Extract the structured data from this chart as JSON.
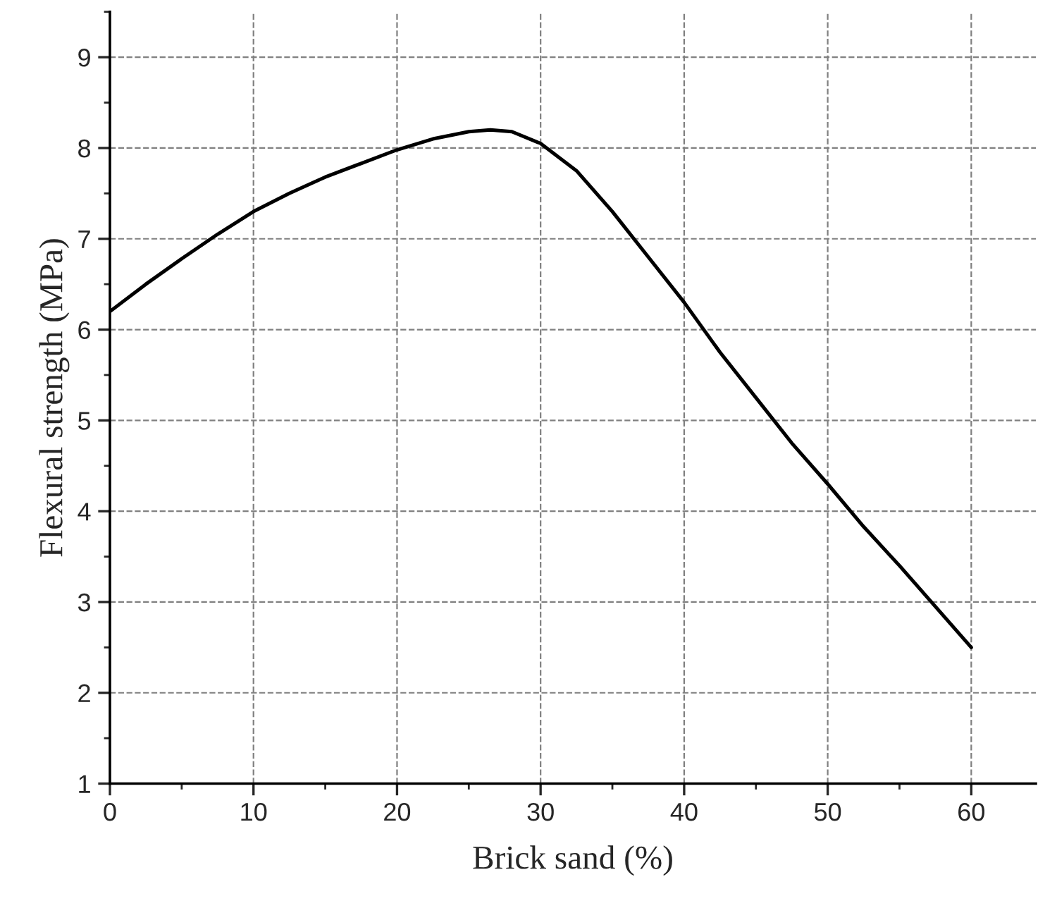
{
  "chart_data": {
    "type": "line",
    "xlabel": "Brick sand (%)",
    "ylabel": "Flexural strength (MPa)",
    "x": [
      0,
      2.5,
      5,
      7.5,
      10,
      12.5,
      15,
      17.5,
      20,
      22.5,
      25,
      26.5,
      28,
      30,
      32.5,
      35,
      37.5,
      40,
      42.5,
      45,
      47.5,
      50,
      52.5,
      55,
      57.5,
      60
    ],
    "series": [
      {
        "color": "#000000",
        "values": [
          6.2,
          6.5,
          6.78,
          7.05,
          7.3,
          7.5,
          7.68,
          7.83,
          7.98,
          8.1,
          8.18,
          8.2,
          8.18,
          8.05,
          7.75,
          7.3,
          6.8,
          6.3,
          5.75,
          5.25,
          4.75,
          4.3,
          3.83,
          3.4,
          2.95,
          2.5
        ]
      }
    ],
    "xlim": [
      0,
      64.5
    ],
    "ylim": [
      1,
      9.5
    ],
    "xticks": [
      0,
      10,
      20,
      30,
      40,
      50,
      60
    ],
    "yticks": [
      1,
      2,
      3,
      4,
      5,
      6,
      7,
      8,
      9
    ],
    "grid": true,
    "marker": "none",
    "line_style": "solid",
    "legend": false
  }
}
